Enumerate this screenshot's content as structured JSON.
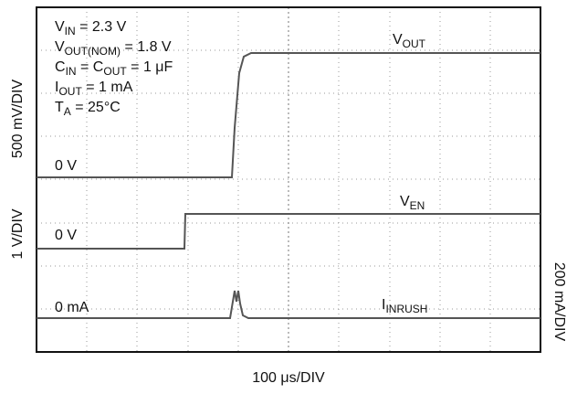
{
  "chart_data": {
    "type": "oscilloscope",
    "conditions": [
      {
        "main": "V",
        "sub": "IN",
        "rest": " = 2.3 V"
      },
      {
        "main": "V",
        "sub": "OUT(NOM)",
        "rest": " = 1.8 V"
      },
      {
        "main": "C",
        "sub": "IN",
        "rest": " = C",
        "sub2": "OUT",
        "rest2": " = 1 μF"
      },
      {
        "main": "I",
        "sub": "OUT",
        "rest": " = 1 mA"
      },
      {
        "main": "T",
        "sub": "A",
        "rest": " = 25°C"
      }
    ],
    "traces": [
      {
        "main": "V",
        "sub": "OUT",
        "zero": "0 V",
        "scale": "500 mV/DIV"
      },
      {
        "main": "V",
        "sub": "EN",
        "zero": "0 V",
        "scale": "1 V/DIV"
      },
      {
        "main": "I",
        "sub": "INRUSH",
        "zero": "0 mA",
        "scale": "200 mA/DIV"
      }
    ],
    "xlabel": "100 μs/DIV"
  }
}
